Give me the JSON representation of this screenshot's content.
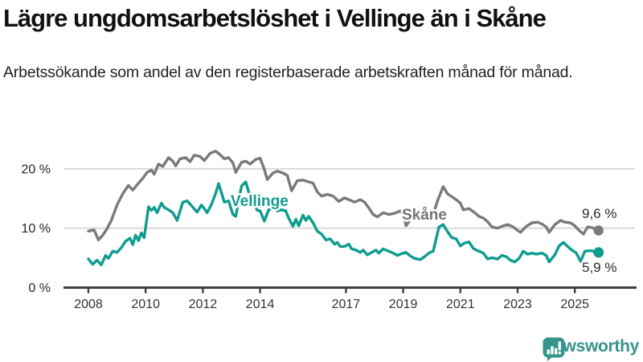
{
  "header": {
    "title": "Lägre ungdomsarbetslöshet i Vellinge än i Skåne",
    "subtitle": "Arbetssökande som andel av den registerbaserade arbetskraften månad för månad."
  },
  "footer": {
    "brand": "Newsworthy",
    "brand_color": "#35948b",
    "logo_icon": "bar-chart-speech-bubble-icon"
  },
  "colors": {
    "skane_line": "#7a7a7a",
    "skane_label": "#757575",
    "vellinge_line": "#0e9c90",
    "grid": "#dadada",
    "axis": "#404040",
    "annotation_text": "#2b2b2b"
  },
  "chart_data": {
    "type": "line",
    "title": "Lägre ungdomsarbetslöshet i Vellinge än i Skåne",
    "xlabel": "",
    "ylabel": "",
    "unit": "%",
    "grid": "horizontal-only",
    "x_ticks": [
      2008,
      2010,
      2012,
      2014,
      2017,
      2019,
      2021,
      2023,
      2025
    ],
    "y_ticks": [
      {
        "v": 0,
        "label": "0 %"
      },
      {
        "v": 10,
        "label": "10 %"
      },
      {
        "v": 20,
        "label": "20 %"
      }
    ],
    "xlim": [
      2007.1,
      2027.1
    ],
    "ylim": [
      0,
      24
    ],
    "legend_position": "inline-labels-on-lines",
    "series": [
      {
        "name": "Skåne",
        "color": "#7a7a7a",
        "end_label": "9,6 %",
        "last_value": 9.6,
        "points": [
          [
            2008.0,
            9.5
          ],
          [
            2008.2,
            9.7
          ],
          [
            2008.35,
            8.0
          ],
          [
            2008.5,
            8.8
          ],
          [
            2008.65,
            9.9
          ],
          [
            2008.8,
            11.3
          ],
          [
            2009.0,
            13.9
          ],
          [
            2009.2,
            15.8
          ],
          [
            2009.4,
            17.2
          ],
          [
            2009.55,
            16.4
          ],
          [
            2009.7,
            17.3
          ],
          [
            2009.9,
            18.4
          ],
          [
            2010.05,
            19.4
          ],
          [
            2010.2,
            19.8
          ],
          [
            2010.3,
            19.1
          ],
          [
            2010.45,
            20.8
          ],
          [
            2010.6,
            20.4
          ],
          [
            2010.8,
            21.9
          ],
          [
            2010.95,
            21.3
          ],
          [
            2011.05,
            20.5
          ],
          [
            2011.2,
            21.7
          ],
          [
            2011.4,
            21.9
          ],
          [
            2011.55,
            21.2
          ],
          [
            2011.7,
            22.3
          ],
          [
            2011.9,
            22.1
          ],
          [
            2012.05,
            21.4
          ],
          [
            2012.25,
            22.6
          ],
          [
            2012.45,
            23.0
          ],
          [
            2012.6,
            22.4
          ],
          [
            2012.75,
            21.7
          ],
          [
            2012.9,
            21.9
          ],
          [
            2013.05,
            21.0
          ],
          [
            2013.15,
            19.4
          ],
          [
            2013.35,
            21.1
          ],
          [
            2013.5,
            21.3
          ],
          [
            2013.65,
            20.8
          ],
          [
            2013.85,
            21.6
          ],
          [
            2014.0,
            21.8
          ],
          [
            2014.15,
            19.9
          ],
          [
            2014.25,
            18.2
          ],
          [
            2014.45,
            19.3
          ],
          [
            2014.6,
            19.6
          ],
          [
            2014.8,
            19.3
          ],
          [
            2014.95,
            18.9
          ],
          [
            2015.1,
            16.3
          ],
          [
            2015.3,
            18.0
          ],
          [
            2015.5,
            18.1
          ],
          [
            2015.7,
            17.8
          ],
          [
            2015.85,
            17.6
          ],
          [
            2016.0,
            16.1
          ],
          [
            2016.15,
            15.4
          ],
          [
            2016.35,
            15.7
          ],
          [
            2016.55,
            15.4
          ],
          [
            2016.75,
            14.5
          ],
          [
            2016.95,
            15.1
          ],
          [
            2017.1,
            14.8
          ],
          [
            2017.3,
            14.4
          ],
          [
            2017.5,
            14.8
          ],
          [
            2017.65,
            14.4
          ],
          [
            2017.8,
            13.4
          ],
          [
            2017.95,
            12.3
          ],
          [
            2018.1,
            11.9
          ],
          [
            2018.3,
            12.6
          ],
          [
            2018.5,
            12.3
          ],
          [
            2018.7,
            12.5
          ],
          [
            2018.9,
            12.9
          ],
          [
            2019.0,
            12.4
          ],
          [
            2019.1,
            10.4
          ],
          [
            2019.3,
            11.8
          ],
          [
            2019.5,
            11.6
          ],
          [
            2019.7,
            11.4
          ],
          [
            2019.9,
            11.8
          ],
          [
            2020.05,
            12.3
          ],
          [
            2020.2,
            14.6
          ],
          [
            2020.4,
            17.0
          ],
          [
            2020.55,
            15.8
          ],
          [
            2020.7,
            15.3
          ],
          [
            2020.85,
            14.8
          ],
          [
            2021.0,
            14.2
          ],
          [
            2021.1,
            13.1
          ],
          [
            2021.3,
            13.3
          ],
          [
            2021.45,
            12.8
          ],
          [
            2021.65,
            12.0
          ],
          [
            2021.8,
            11.7
          ],
          [
            2021.95,
            11.1
          ],
          [
            2022.1,
            10.2
          ],
          [
            2022.3,
            10.0
          ],
          [
            2022.5,
            10.4
          ],
          [
            2022.65,
            10.6
          ],
          [
            2022.85,
            10.2
          ],
          [
            2023.0,
            9.6
          ],
          [
            2023.1,
            9.3
          ],
          [
            2023.3,
            10.3
          ],
          [
            2023.5,
            10.9
          ],
          [
            2023.7,
            11.0
          ],
          [
            2023.85,
            10.7
          ],
          [
            2024.0,
            10.2
          ],
          [
            2024.1,
            9.3
          ],
          [
            2024.3,
            10.6
          ],
          [
            2024.5,
            11.3
          ],
          [
            2024.65,
            11.0
          ],
          [
            2024.85,
            10.9
          ],
          [
            2025.0,
            10.4
          ],
          [
            2025.15,
            9.6
          ],
          [
            2025.3,
            9.0
          ],
          [
            2025.45,
            10.2
          ],
          [
            2025.6,
            10.1
          ],
          [
            2025.83,
            9.6
          ]
        ]
      },
      {
        "name": "Vellinge",
        "color": "#0e9c90",
        "end_label": "5,9 %",
        "last_value": 5.9,
        "points": [
          [
            2008.0,
            4.8
          ],
          [
            2008.15,
            3.9
          ],
          [
            2008.3,
            4.6
          ],
          [
            2008.45,
            3.8
          ],
          [
            2008.6,
            5.4
          ],
          [
            2008.7,
            4.9
          ],
          [
            2008.85,
            6.1
          ],
          [
            2009.0,
            5.9
          ],
          [
            2009.15,
            6.7
          ],
          [
            2009.3,
            7.8
          ],
          [
            2009.45,
            8.3
          ],
          [
            2009.55,
            7.2
          ],
          [
            2009.65,
            8.8
          ],
          [
            2009.75,
            7.9
          ],
          [
            2009.85,
            9.2
          ],
          [
            2009.95,
            8.4
          ],
          [
            2010.1,
            13.6
          ],
          [
            2010.2,
            13.0
          ],
          [
            2010.3,
            13.5
          ],
          [
            2010.4,
            12.6
          ],
          [
            2010.55,
            14.2
          ],
          [
            2010.65,
            13.5
          ],
          [
            2010.8,
            13.1
          ],
          [
            2010.95,
            12.6
          ],
          [
            2011.1,
            11.3
          ],
          [
            2011.3,
            14.4
          ],
          [
            2011.45,
            14.6
          ],
          [
            2011.6,
            13.8
          ],
          [
            2011.8,
            12.7
          ],
          [
            2011.95,
            13.9
          ],
          [
            2012.05,
            13.3
          ],
          [
            2012.15,
            12.6
          ],
          [
            2012.3,
            14.0
          ],
          [
            2012.45,
            15.9
          ],
          [
            2012.55,
            17.5
          ],
          [
            2012.65,
            16.0
          ],
          [
            2012.75,
            14.4
          ],
          [
            2012.9,
            14.6
          ],
          [
            2013.05,
            12.3
          ],
          [
            2013.15,
            12.0
          ],
          [
            2013.35,
            17.1
          ],
          [
            2013.5,
            17.8
          ],
          [
            2013.6,
            16.1
          ],
          [
            2013.75,
            14.8
          ],
          [
            2013.9,
            13.0
          ],
          [
            2014.0,
            12.9
          ],
          [
            2014.15,
            11.2
          ],
          [
            2014.3,
            13.1
          ],
          [
            2014.45,
            13.3
          ],
          [
            2014.6,
            12.9
          ],
          [
            2014.75,
            13.1
          ],
          [
            2014.9,
            12.9
          ],
          [
            2015.0,
            11.7
          ],
          [
            2015.15,
            10.3
          ],
          [
            2015.25,
            11.5
          ],
          [
            2015.35,
            10.4
          ],
          [
            2015.5,
            12.2
          ],
          [
            2015.6,
            11.3
          ],
          [
            2015.7,
            12.0
          ],
          [
            2015.85,
            10.9
          ],
          [
            2016.0,
            9.5
          ],
          [
            2016.15,
            9.0
          ],
          [
            2016.3,
            8.0
          ],
          [
            2016.45,
            8.2
          ],
          [
            2016.6,
            7.3
          ],
          [
            2016.7,
            7.6
          ],
          [
            2016.8,
            6.9
          ],
          [
            2016.95,
            6.9
          ],
          [
            2017.1,
            7.3
          ],
          [
            2017.2,
            6.5
          ],
          [
            2017.35,
            6.3
          ],
          [
            2017.5,
            5.9
          ],
          [
            2017.6,
            6.3
          ],
          [
            2017.75,
            5.5
          ],
          [
            2017.9,
            5.9
          ],
          [
            2018.05,
            6.3
          ],
          [
            2018.15,
            5.8
          ],
          [
            2018.3,
            6.5
          ],
          [
            2018.5,
            6.1
          ],
          [
            2018.65,
            5.8
          ],
          [
            2018.8,
            5.4
          ],
          [
            2018.95,
            5.7
          ],
          [
            2019.1,
            5.9
          ],
          [
            2019.25,
            5.3
          ],
          [
            2019.4,
            4.9
          ],
          [
            2019.6,
            4.7
          ],
          [
            2019.75,
            5.2
          ],
          [
            2019.9,
            5.8
          ],
          [
            2020.05,
            6.1
          ],
          [
            2020.25,
            10.2
          ],
          [
            2020.4,
            10.6
          ],
          [
            2020.55,
            9.4
          ],
          [
            2020.7,
            8.4
          ],
          [
            2020.85,
            8.2
          ],
          [
            2021.0,
            7.0
          ],
          [
            2021.15,
            7.5
          ],
          [
            2021.3,
            7.7
          ],
          [
            2021.45,
            6.6
          ],
          [
            2021.6,
            6.2
          ],
          [
            2021.8,
            5.8
          ],
          [
            2021.95,
            4.8
          ],
          [
            2022.1,
            5.0
          ],
          [
            2022.3,
            4.8
          ],
          [
            2022.45,
            5.4
          ],
          [
            2022.6,
            5.2
          ],
          [
            2022.75,
            4.6
          ],
          [
            2022.9,
            4.3
          ],
          [
            2023.05,
            4.9
          ],
          [
            2023.2,
            6.1
          ],
          [
            2023.35,
            5.6
          ],
          [
            2023.5,
            5.8
          ],
          [
            2023.65,
            5.6
          ],
          [
            2023.85,
            5.8
          ],
          [
            2024.0,
            5.4
          ],
          [
            2024.1,
            4.3
          ],
          [
            2024.3,
            5.5
          ],
          [
            2024.45,
            7.0
          ],
          [
            2024.6,
            7.6
          ],
          [
            2024.75,
            6.9
          ],
          [
            2024.9,
            6.3
          ],
          [
            2025.05,
            5.8
          ],
          [
            2025.2,
            4.4
          ],
          [
            2025.35,
            6.1
          ],
          [
            2025.55,
            6.2
          ],
          [
            2025.83,
            5.9
          ]
        ]
      }
    ]
  }
}
